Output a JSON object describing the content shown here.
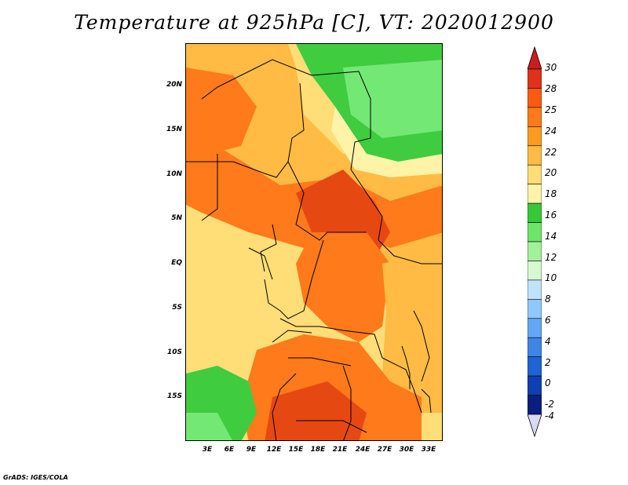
{
  "title": "Temperature at 925hPa [C], VT: 2020012900",
  "credit": "GrADS: IGES/COLA",
  "lat_labels": [
    "20N",
    "15N",
    "10N",
    "5N",
    "EQ",
    "5S",
    "10S",
    "15S"
  ],
  "lon_labels": [
    "3E",
    "6E",
    "9E",
    "12E",
    "15E",
    "18E",
    "21E",
    "24E",
    "27E",
    "30E",
    "33E"
  ],
  "colorbar": {
    "labels": [
      "30",
      "28",
      "25",
      "24",
      "22",
      "20",
      "18",
      "16",
      "14",
      "12",
      "10",
      "8",
      "6",
      "4",
      "2",
      "0",
      "-2",
      "-4"
    ],
    "colors": [
      "#e0321a",
      "#fe5b10",
      "#ff7a1a",
      "#ff9a21",
      "#ffbb44",
      "#ffdd77",
      "#fff3a8",
      "#37c837",
      "#6be66b",
      "#a2f09b",
      "#d6f9d0",
      "#bfe2ff",
      "#8fc8ff",
      "#64a6f5",
      "#3f85e6",
      "#1f63d4",
      "#0f3fb0",
      "#0a1d80"
    ],
    "top_arrow_color": "#c81e1e",
    "bottom_arrow_color": "#d9d9f5"
  },
  "map_colors": {
    "hot": "#e64812",
    "warm": "#ff6d16",
    "mild": "#ff9a21",
    "cool": "#ffbb44",
    "pale": "#ffdd77",
    "veryPale": "#fff3a8",
    "green": "#3fcc3f",
    "lightGreen": "#74e874"
  }
}
